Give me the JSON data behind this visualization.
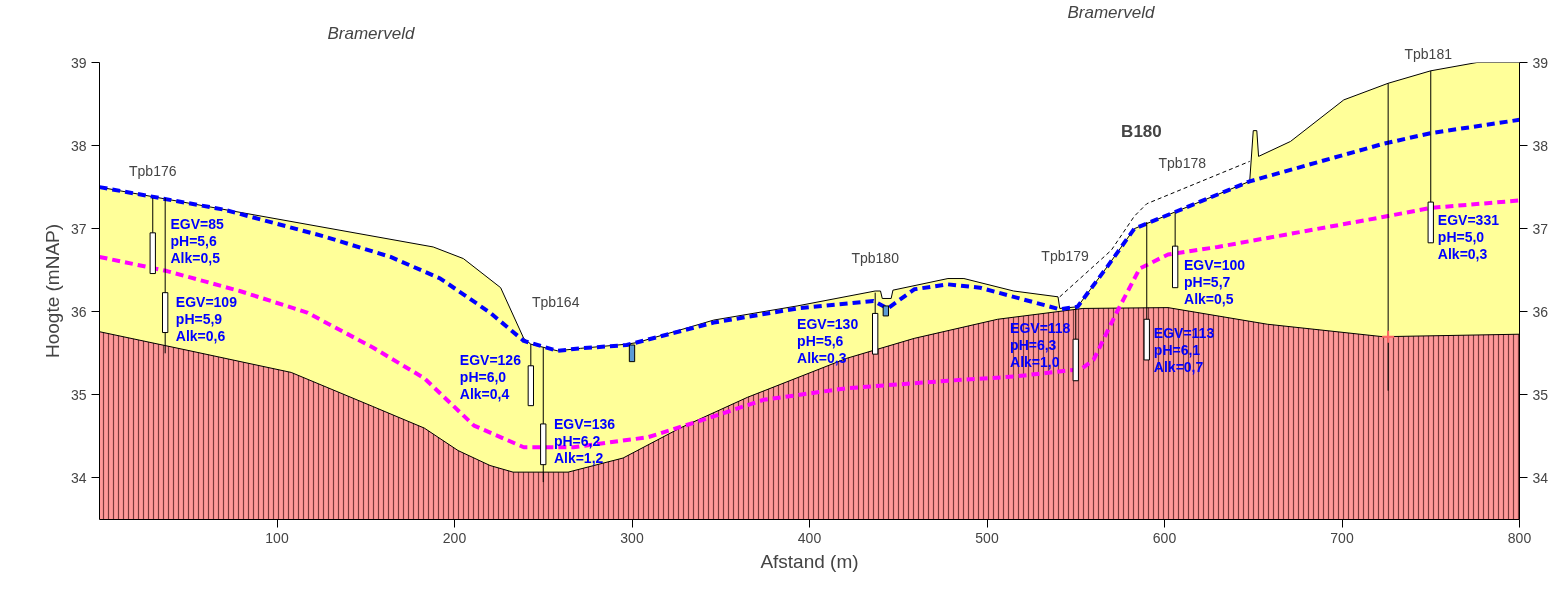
{
  "chart_data": {
    "type": "area",
    "xlabel": "Afstand (m)",
    "ylabel": "Hoogte (mNAP)",
    "xlim": [
      0,
      800
    ],
    "xticks": [
      100,
      200,
      300,
      400,
      500,
      600,
      700,
      800
    ],
    "ylim": [
      33.5,
      39
    ],
    "yticks": [
      34,
      35,
      36,
      37,
      38,
      39
    ],
    "y2lim": [
      33.5,
      39
    ],
    "y2ticks": [
      34,
      35,
      36,
      37,
      38,
      39
    ],
    "grid": false,
    "series": [
      {
        "color": "#ffff99",
        "x": [
          0,
          188,
          205,
          226,
          239,
          243,
          258,
          271,
          297,
          303,
          346,
          393,
          437,
          440,
          441,
          446,
          447,
          478,
          487,
          515,
          540,
          541,
          551,
          568,
          583,
          607,
          648,
          650,
          652,
          653,
          671,
          701,
          726,
          750,
          776,
          800
        ],
        "values": [
          37.5,
          36.78,
          36.64,
          36.29,
          35.68,
          35.61,
          35.53,
          35.56,
          35.61,
          35.63,
          35.9,
          36.07,
          36.25,
          36.25,
          36.16,
          36.16,
          36.26,
          36.4,
          36.4,
          36.25,
          36.18,
          36.04,
          36.06,
          36.55,
          37.0,
          37.21,
          37.57,
          38.18,
          38.18,
          37.87,
          38.05,
          38.55,
          38.75,
          38.9,
          39.0,
          39.0
        ]
      },
      {
        "color": "#ff9999",
        "x": [
          0,
          51,
          108,
          154,
          183,
          202,
          220,
          233,
          264,
          295,
          327,
          365,
          421,
          459,
          506,
          554,
          602,
          658,
          723,
          800
        ],
        "values": [
          35.76,
          35.53,
          35.27,
          34.86,
          34.6,
          34.33,
          34.15,
          34.07,
          34.07,
          34.24,
          34.6,
          34.97,
          35.44,
          35.68,
          35.91,
          36.04,
          36.05,
          35.85,
          35.7,
          35.73
        ]
      },
      {
        "type": "line",
        "color": "#000000",
        "line_style": "dashed",
        "x": [
          541,
          570,
          583,
          590,
          648
        ],
        "values": [
          36.18,
          36.74,
          37.15,
          37.3,
          37.81
        ]
      },
      {
        "type": "line",
        "color": "#ff00ff",
        "line_style": "dashed",
        "x": [
          0,
          38,
          79,
          117,
          154,
          183,
          211,
          239,
          267,
          309,
          346,
          374,
          421,
          478,
          515,
          553,
          560,
          573,
          586,
          602,
          630,
          723,
          750,
          800
        ],
        "values": [
          36.66,
          36.49,
          36.25,
          35.99,
          35.57,
          35.2,
          34.63,
          34.37,
          34.37,
          34.49,
          34.74,
          34.94,
          35.08,
          35.17,
          35.22,
          35.31,
          35.42,
          35.99,
          36.52,
          36.69,
          36.78,
          37.14,
          37.25,
          37.34
        ]
      },
      {
        "type": "line",
        "color": "#0000ff",
        "line_style": "dashed",
        "x": [
          0,
          70,
          126,
          164,
          192,
          220,
          239,
          258,
          271,
          297,
          346,
          393,
          436,
          444,
          459,
          478,
          496,
          515,
          541,
          551,
          568,
          583,
          607,
          648,
          723,
          750,
          800
        ],
        "values": [
          37.5,
          37.23,
          36.91,
          36.66,
          36.4,
          35.99,
          35.65,
          35.53,
          35.56,
          35.6,
          35.87,
          36.04,
          36.13,
          36.04,
          36.27,
          36.33,
          36.29,
          36.18,
          36.03,
          36.06,
          36.55,
          37.0,
          37.21,
          37.57,
          38.02,
          38.15,
          38.31
        ]
      },
      {
        "type": "line",
        "color": "#000000",
        "line_style": "solid",
        "x": [
          30,
          30,
          null,
          37,
          37,
          null,
          243,
          243,
          null,
          250,
          250,
          null,
          437,
          437,
          null,
          550,
          550,
          null,
          590,
          590,
          null,
          606,
          606,
          null,
          726,
          726,
          null,
          750,
          750
        ],
        "values": [
          37.37,
          36.46,
          null,
          37.37,
          35.5,
          null,
          35.61,
          34.87,
          null,
          35.57,
          33.95,
          null,
          36.23,
          35.49,
          null,
          36.04,
          35.17,
          null,
          37.08,
          35.42,
          null,
          37.19,
          36.29,
          null,
          38.75,
          35.05,
          null,
          38.9,
          36.83
        ]
      },
      {
        "type": "bar",
        "color": "#ffffff",
        "x": [
          30,
          37,
          243,
          250,
          437,
          550,
          590,
          606,
          750
        ],
        "base": [
          36.46,
          35.75,
          34.87,
          34.16,
          35.49,
          35.17,
          35.42,
          36.29,
          36.83
        ],
        "values": [
          0.49,
          0.48,
          0.48,
          0.49,
          0.49,
          0.5,
          0.49,
          0.5,
          0.49
        ]
      },
      {
        "type": "bar",
        "color": "#5b9bd5",
        "x": [
          300,
          443
        ],
        "base": [
          35.4,
          35.95
        ],
        "values": [
          0.2,
          0.12
        ]
      },
      {
        "type": "scatter",
        "color": "#ff6666",
        "marker": "cross",
        "x": [
          726
        ],
        "values": [
          35.7
        ]
      }
    ],
    "annotations": [
      "Bramerveld",
      "Bramerveld",
      "Tpb176",
      "Tpb164",
      "Tpb180",
      "Tpb179",
      "Tpb178",
      "Tpb181",
      "B180",
      "EGV=85\npH=5,6\nAlk=0,5",
      "EGV=109\npH=5,9\nAlk=0,6",
      "EGV=126\npH=6,0\nAlk=0,4",
      "EGV=136\npH=6,2\nAlk=1,2",
      "EGV=130\npH=5,6\nAlk=0,3",
      "EGV=118\npH=6,3\nAlk=1,0",
      "EGV=113\npH=6,1\nAlk=0,7",
      "EGV=100\npH=5,7\nAlk=0,5",
      "EGV=331\npH=5,0\nAlk=0,3"
    ]
  }
}
